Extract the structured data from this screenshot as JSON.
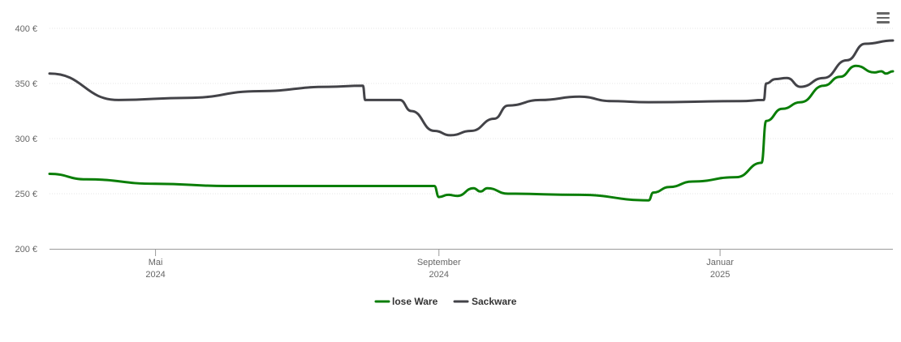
{
  "chart_data": {
    "type": "line",
    "y_ticks": [
      {
        "value": 200,
        "label": "200 €"
      },
      {
        "value": 250,
        "label": "250 €"
      },
      {
        "value": 300,
        "label": "300 €"
      },
      {
        "value": 350,
        "label": "350 €"
      },
      {
        "value": 400,
        "label": "400 €"
      }
    ],
    "ylim": [
      200,
      400
    ],
    "xlim": [
      "2024-03-16",
      "2025-03-17"
    ],
    "x_ticks": [
      {
        "date": "2024-05-01",
        "month": "Mai",
        "year": "2024"
      },
      {
        "date": "2024-09-01",
        "month": "September",
        "year": "2024"
      },
      {
        "date": "2025-01-01",
        "month": "Januar",
        "year": "2025"
      }
    ],
    "grid": true,
    "legend_position": "bottom-center",
    "series": [
      {
        "name": "lose Ware",
        "color": "#0a7e07",
        "points": [
          [
            "2024-03-16",
            268
          ],
          [
            "2024-04-01",
            263
          ],
          [
            "2024-05-01",
            259
          ],
          [
            "2024-06-01",
            257
          ],
          [
            "2024-08-30",
            257
          ],
          [
            "2024-09-01",
            247
          ],
          [
            "2024-09-05",
            249
          ],
          [
            "2024-09-09",
            248
          ],
          [
            "2024-09-16",
            255
          ],
          [
            "2024-09-19",
            252
          ],
          [
            "2024-09-22",
            255
          ],
          [
            "2024-10-01",
            250
          ],
          [
            "2024-11-01",
            249
          ],
          [
            "2024-12-01",
            244
          ],
          [
            "2024-12-03",
            251
          ],
          [
            "2024-12-10",
            256
          ],
          [
            "2024-12-20",
            261
          ],
          [
            "2025-01-08",
            265
          ],
          [
            "2025-01-19",
            278
          ],
          [
            "2025-01-21",
            316
          ],
          [
            "2025-01-28",
            327
          ],
          [
            "2025-02-05",
            333
          ],
          [
            "2025-02-15",
            348
          ],
          [
            "2025-02-22",
            356
          ],
          [
            "2025-03-01",
            366
          ],
          [
            "2025-03-09",
            360
          ],
          [
            "2025-03-12",
            361
          ],
          [
            "2025-03-14",
            359
          ],
          [
            "2025-03-17",
            361
          ]
        ]
      },
      {
        "name": "Sackware",
        "color": "#434348",
        "points": [
          [
            "2024-03-16",
            359
          ],
          [
            "2024-04-15",
            335
          ],
          [
            "2024-05-15",
            337
          ],
          [
            "2024-06-15",
            343
          ],
          [
            "2024-07-15",
            347
          ],
          [
            "2024-07-30",
            348
          ],
          [
            "2024-07-31",
            335
          ],
          [
            "2024-08-15",
            335
          ],
          [
            "2024-08-20",
            325
          ],
          [
            "2024-08-30",
            307
          ],
          [
            "2024-09-06",
            303
          ],
          [
            "2024-09-15",
            307
          ],
          [
            "2024-09-25",
            318
          ],
          [
            "2024-10-01",
            330
          ],
          [
            "2024-10-15",
            335
          ],
          [
            "2024-11-01",
            338
          ],
          [
            "2024-11-15",
            334
          ],
          [
            "2024-12-01",
            333
          ],
          [
            "2025-01-10",
            334
          ],
          [
            "2025-01-20",
            335
          ],
          [
            "2025-01-21",
            350
          ],
          [
            "2025-01-25",
            354
          ],
          [
            "2025-01-30",
            355
          ],
          [
            "2025-02-05",
            347
          ],
          [
            "2025-02-15",
            355
          ],
          [
            "2025-02-25",
            371
          ],
          [
            "2025-03-05",
            386
          ],
          [
            "2025-03-17",
            389
          ]
        ]
      }
    ]
  }
}
